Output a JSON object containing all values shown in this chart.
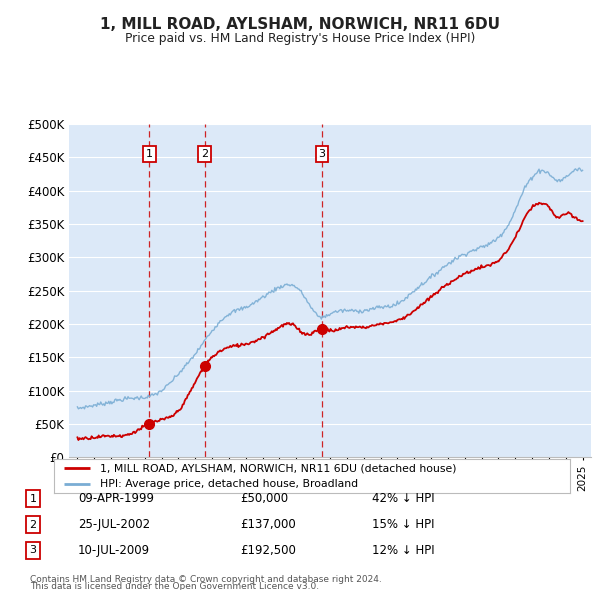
{
  "title": "1, MILL ROAD, AYLSHAM, NORWICH, NR11 6DU",
  "subtitle": "Price paid vs. HM Land Registry's House Price Index (HPI)",
  "legend_property": "1, MILL ROAD, AYLSHAM, NORWICH, NR11 6DU (detached house)",
  "legend_hpi": "HPI: Average price, detached house, Broadland",
  "footer1": "Contains HM Land Registry data © Crown copyright and database right 2024.",
  "footer2": "This data is licensed under the Open Government Licence v3.0.",
  "sales": [
    {
      "num": 1,
      "date": "09-APR-1999",
      "year": 1999.27,
      "price": 50000,
      "label": "42% ↓ HPI"
    },
    {
      "num": 2,
      "date": "25-JUL-2002",
      "year": 2002.56,
      "price": 137000,
      "label": "15% ↓ HPI"
    },
    {
      "num": 3,
      "date": "10-JUL-2009",
      "year": 2009.52,
      "price": 192500,
      "label": "12% ↓ HPI"
    }
  ],
  "ylim": [
    0,
    500000
  ],
  "yticks": [
    0,
    50000,
    100000,
    150000,
    200000,
    250000,
    300000,
    350000,
    400000,
    450000,
    500000
  ],
  "ytick_labels": [
    "£0",
    "£50K",
    "£100K",
    "£150K",
    "£200K",
    "£250K",
    "£300K",
    "£350K",
    "£400K",
    "£450K",
    "£500K"
  ],
  "xlim_start": 1994.5,
  "xlim_end": 2025.5,
  "bg_color": "#dce9f8",
  "grid_color": "#ffffff",
  "red_line_color": "#cc0000",
  "blue_line_color": "#7aadd4",
  "dashed_color": "#cc0000",
  "hpi_keypoints": [
    [
      1995.0,
      73000
    ],
    [
      1996.0,
      78000
    ],
    [
      1997.0,
      83000
    ],
    [
      1998.0,
      88000
    ],
    [
      1999.0,
      90000
    ],
    [
      2000.0,
      100000
    ],
    [
      2001.0,
      125000
    ],
    [
      2002.0,
      155000
    ],
    [
      2003.0,
      190000
    ],
    [
      2004.0,
      215000
    ],
    [
      2005.0,
      225000
    ],
    [
      2006.0,
      240000
    ],
    [
      2007.0,
      255000
    ],
    [
      2008.0,
      255000
    ],
    [
      2008.5,
      240000
    ],
    [
      2009.0,
      220000
    ],
    [
      2009.5,
      210000
    ],
    [
      2010.0,
      215000
    ],
    [
      2011.0,
      220000
    ],
    [
      2012.0,
      220000
    ],
    [
      2013.0,
      225000
    ],
    [
      2014.0,
      230000
    ],
    [
      2015.0,
      250000
    ],
    [
      2016.0,
      270000
    ],
    [
      2017.0,
      290000
    ],
    [
      2018.0,
      305000
    ],
    [
      2019.0,
      315000
    ],
    [
      2020.0,
      330000
    ],
    [
      2021.0,
      370000
    ],
    [
      2021.5,
      400000
    ],
    [
      2022.0,
      420000
    ],
    [
      2022.5,
      430000
    ],
    [
      2023.0,
      425000
    ],
    [
      2023.5,
      415000
    ],
    [
      2024.0,
      420000
    ],
    [
      2024.5,
      430000
    ],
    [
      2025.0,
      430000
    ]
  ],
  "red_keypoints": [
    [
      1995.0,
      28000
    ],
    [
      1996.0,
      30000
    ],
    [
      1997.0,
      32000
    ],
    [
      1998.0,
      34000
    ],
    [
      1999.27,
      50000
    ],
    [
      2000.0,
      56000
    ],
    [
      2001.0,
      70000
    ],
    [
      2002.56,
      137000
    ],
    [
      2003.0,
      150000
    ],
    [
      2004.0,
      165000
    ],
    [
      2005.0,
      170000
    ],
    [
      2006.0,
      180000
    ],
    [
      2007.0,
      195000
    ],
    [
      2007.5,
      200000
    ],
    [
      2008.0,
      195000
    ],
    [
      2008.5,
      185000
    ],
    [
      2009.52,
      192500
    ],
    [
      2010.0,
      190000
    ],
    [
      2011.0,
      195000
    ],
    [
      2012.0,
      195000
    ],
    [
      2013.0,
      200000
    ],
    [
      2014.0,
      205000
    ],
    [
      2015.0,
      220000
    ],
    [
      2016.0,
      240000
    ],
    [
      2017.0,
      260000
    ],
    [
      2018.0,
      275000
    ],
    [
      2019.0,
      285000
    ],
    [
      2020.0,
      295000
    ],
    [
      2021.0,
      330000
    ],
    [
      2021.5,
      355000
    ],
    [
      2022.0,
      375000
    ],
    [
      2022.5,
      380000
    ],
    [
      2023.0,
      375000
    ],
    [
      2023.5,
      360000
    ],
    [
      2024.0,
      365000
    ],
    [
      2024.5,
      360000
    ],
    [
      2025.0,
      355000
    ]
  ]
}
